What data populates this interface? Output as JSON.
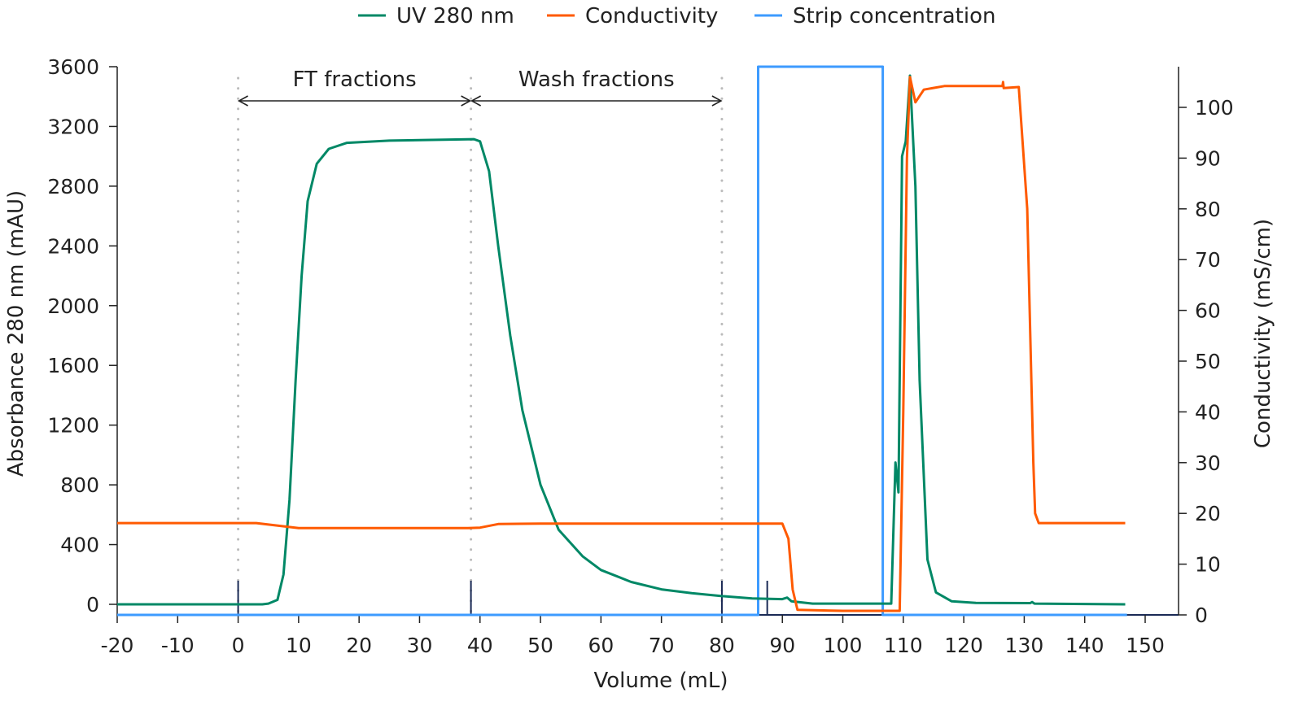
{
  "chart_data": {
    "type": "line",
    "xlabel": "Volume (mL)",
    "ylabel_left": "Absorbance 280 nm (mAU)",
    "ylabel_right": "Conductivity (mS/cm)",
    "xlim": [
      -20,
      150
    ],
    "ylim_left": [
      0,
      3600
    ],
    "ylim_right": [
      0,
      108
    ],
    "x_ticks": [
      "-20",
      "-10",
      "0",
      "10",
      "20",
      "30",
      "40",
      "50",
      "60",
      "70",
      "80",
      "90",
      "100",
      "110",
      "120",
      "130",
      "140",
      "150"
    ],
    "y_left_ticks": [
      "0",
      "400",
      "800",
      "1200",
      "1600",
      "2000",
      "2400",
      "2800",
      "3200",
      "3600"
    ],
    "y_right_ticks": [
      "0",
      "10",
      "20",
      "30",
      "40",
      "50",
      "60",
      "70",
      "80",
      "90",
      "100"
    ],
    "grid": false,
    "legend_placement": "top-center",
    "series": [
      {
        "name": "UV 280 nm",
        "axis": "left",
        "color": "#008866",
        "x": [
          -20,
          4,
          5,
          6.5,
          7.5,
          8.5,
          9.5,
          10.5,
          11.5,
          13,
          15,
          18,
          25,
          39,
          40,
          41.5,
          43,
          45,
          47,
          50,
          53,
          57,
          60,
          65,
          70,
          75,
          80,
          85,
          90,
          90.8,
          91.5,
          95,
          108,
          108.7,
          109.2,
          109.8,
          110.4,
          111.1,
          112,
          112.7,
          114,
          115.4,
          118,
          122,
          131,
          131.3,
          131.7,
          146.7
        ],
        "y": [
          0,
          0,
          5,
          30,
          200,
          700,
          1500,
          2200,
          2700,
          2950,
          3050,
          3090,
          3105,
          3115,
          3100,
          2900,
          2400,
          1800,
          1300,
          800,
          500,
          320,
          230,
          150,
          100,
          75,
          55,
          40,
          35,
          45,
          20,
          5,
          5,
          950,
          750,
          3000,
          3100,
          3540,
          2800,
          1500,
          300,
          80,
          20,
          10,
          8,
          15,
          5,
          0
        ]
      },
      {
        "name": "Conductivity",
        "axis": "right",
        "color": "#ff5a00",
        "x": [
          -20,
          3,
          10,
          38,
          40,
          43,
          50,
          90,
          91,
          91.7,
          92.5,
          100,
          109.4,
          110,
          110.6,
          111.1,
          112,
          113.4,
          116.8,
          126.4,
          126.5,
          126.6,
          129.1,
          130.5,
          131.5,
          131.8,
          132.4,
          146.7
        ],
        "y": [
          18.1,
          18.1,
          17.1,
          17.1,
          17.2,
          17.9,
          18,
          18,
          15,
          5,
          1,
          0.8,
          0.8,
          40,
          90,
          106,
          101,
          103.5,
          104.2,
          104.2,
          105,
          103.8,
          104,
          80,
          30,
          20,
          18.1,
          18.1
        ]
      },
      {
        "name": "Strip concentration",
        "axis": "strip",
        "color": "#3d9bff",
        "x": [
          -20,
          86,
          86,
          106.6,
          106.6,
          147
        ],
        "y": [
          0,
          0,
          100,
          100,
          0,
          0
        ]
      }
    ],
    "annotations": [
      {
        "text": "FT fractions",
        "from": 0,
        "to": 38.5
      },
      {
        "text": "Wash fractions",
        "from": 38.5,
        "to": 80
      }
    ],
    "fraction_marks": [
      0,
      38.5,
      80,
      87.5
    ]
  }
}
